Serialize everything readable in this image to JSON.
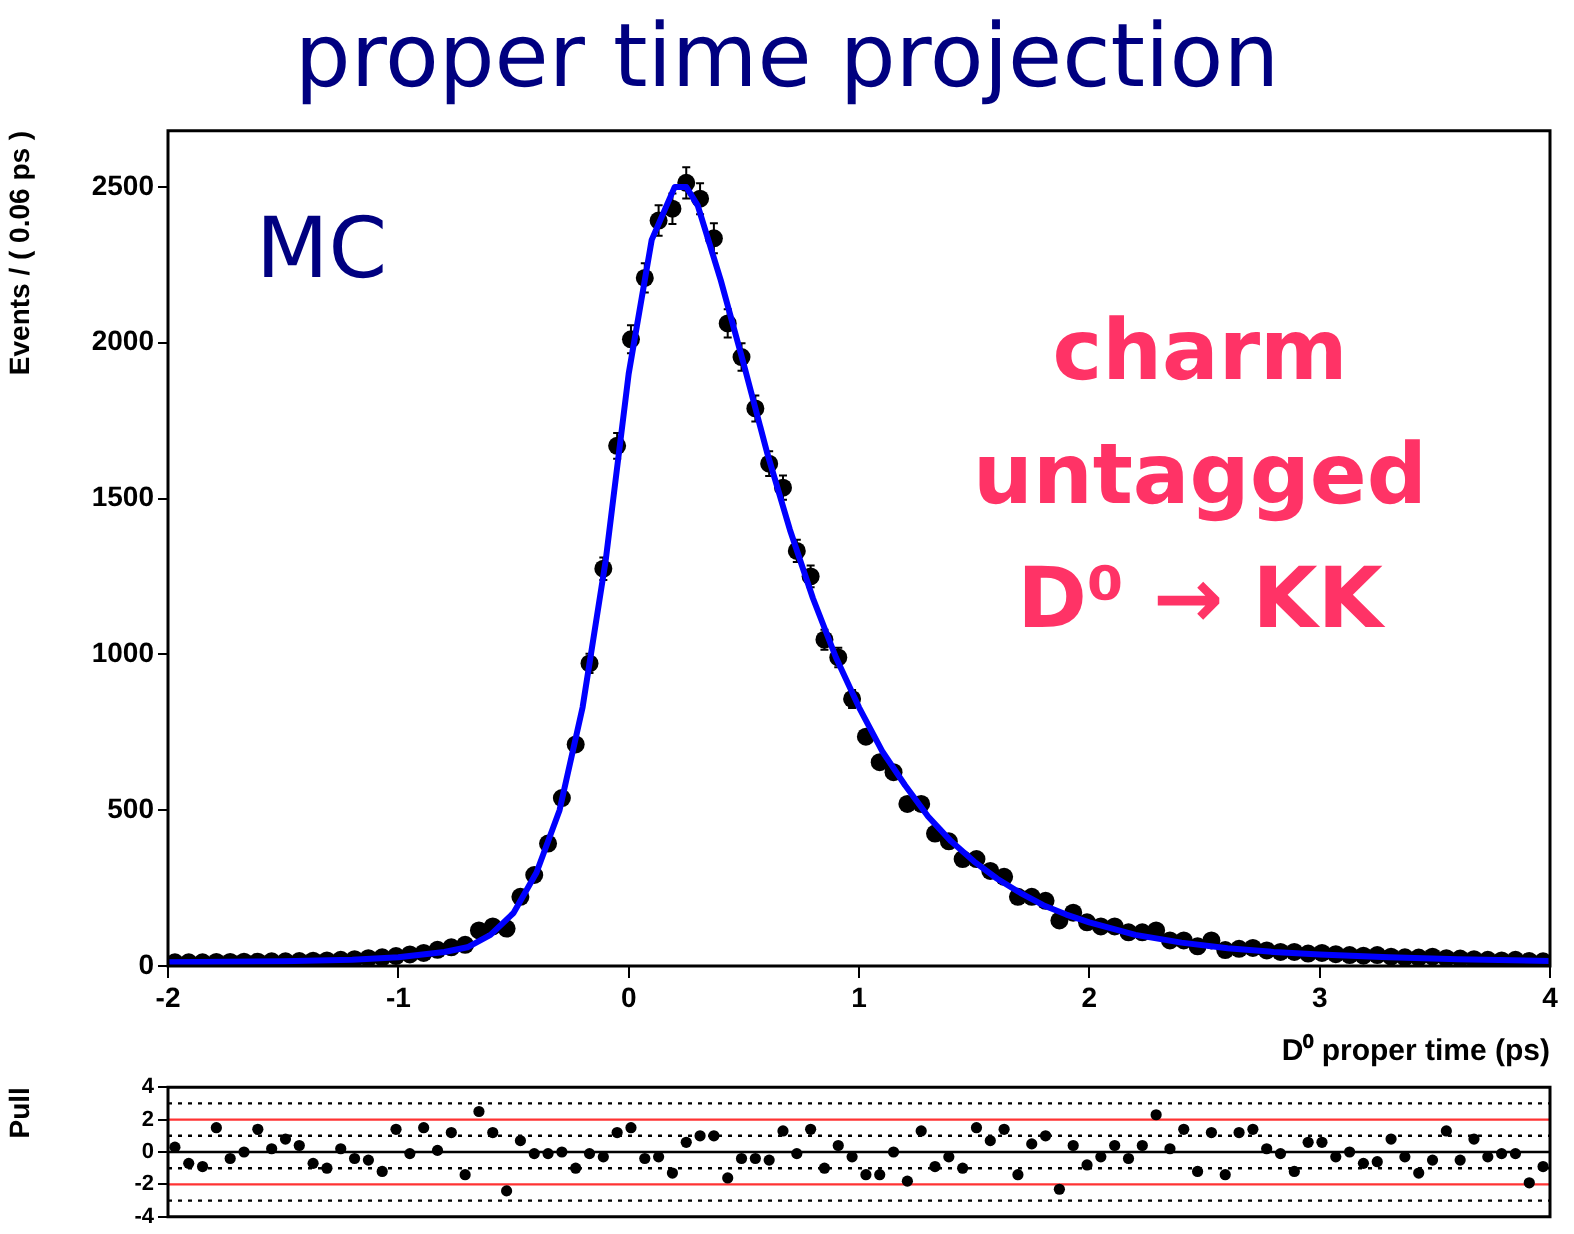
{
  "chart_data": [
    {
      "type": "scatter",
      "title": "proper time projection",
      "xlabel": "D⁰ proper time (ps)",
      "ylabel": "Events / ( 0.06 ps )",
      "annotations": [
        "MC",
        "charm",
        "untagged",
        "D⁰ → KK"
      ],
      "xlim": [
        -2,
        4
      ],
      "xticks": [
        -2,
        -1,
        0,
        1,
        2,
        3,
        4
      ],
      "ylim": [
        0,
        2680
      ],
      "yticks": [
        0,
        500,
        1000,
        1500,
        2000,
        2500
      ],
      "marker": "circle",
      "series": [
        {
          "type": "scatter",
          "color": "#000000",
          "x": [
            -1.97,
            -1.91,
            -1.85,
            -1.79,
            -1.73,
            -1.67,
            -1.61,
            -1.55,
            -1.49,
            -1.43,
            -1.37,
            -1.31,
            -1.25,
            -1.19,
            -1.13,
            -1.07,
            -1.01,
            -0.95,
            -0.89,
            -0.83,
            -0.77,
            -0.71,
            -0.65,
            -0.59,
            -0.53,
            -0.47,
            -0.41,
            -0.35,
            -0.29,
            -0.23,
            -0.17,
            -0.11,
            -0.05,
            0.01,
            0.07,
            0.13,
            0.19,
            0.25,
            0.31,
            0.37,
            0.43,
            0.49,
            0.55,
            0.61,
            0.67,
            0.73,
            0.79,
            0.85,
            0.91,
            0.97,
            1.03,
            1.09,
            1.15,
            1.21,
            1.27,
            1.33,
            1.39,
            1.45,
            1.51,
            1.57,
            1.63,
            1.69,
            1.75,
            1.81,
            1.87,
            1.93,
            1.99,
            2.05,
            2.11,
            2.17,
            2.23,
            2.29,
            2.35,
            2.41,
            2.47,
            2.53,
            2.59,
            2.65,
            2.71,
            2.77,
            2.83,
            2.89,
            2.95,
            3.01,
            3.07,
            3.13,
            3.19,
            3.25,
            3.31,
            3.37,
            3.43,
            3.49,
            3.55,
            3.61,
            3.67,
            3.73,
            3.79,
            3.85,
            3.91,
            3.97
          ],
          "values": [
            12,
            12,
            12,
            13,
            13,
            14,
            14,
            15,
            15,
            16,
            17,
            18,
            20,
            22,
            25,
            28,
            32,
            37,
            42,
            52,
            60,
            68,
            114,
            127,
            120,
            222,
            292,
            393,
            539,
            711,
            971,
            1275,
            1669,
            2011,
            2208,
            2392,
            2430,
            2513,
            2462,
            2335,
            2062,
            1954,
            1789,
            1612,
            1535,
            1332,
            1250,
            1047,
            990,
            857,
            736,
            654,
            622,
            520,
            520,
            425,
            400,
            343,
            343,
            305,
            286,
            222,
            222,
            209,
            146,
            171,
            140,
            127,
            127,
            108,
            108,
            114,
            82,
            82,
            63,
            82,
            51,
            55,
            58,
            50,
            45,
            45,
            40,
            42,
            38,
            35,
            33,
            35,
            30,
            28,
            27,
            30,
            25,
            24,
            22,
            20,
            18,
            20,
            16,
            15
          ],
          "errors": [
            null,
            null,
            null,
            null,
            null,
            null,
            null,
            null,
            null,
            null,
            null,
            null,
            null,
            null,
            null,
            null,
            null,
            null,
            null,
            null,
            null,
            null,
            null,
            null,
            null,
            null,
            null,
            null,
            null,
            null,
            31,
            36,
            41,
            45,
            47,
            49,
            49,
            50,
            50,
            48,
            45,
            44,
            42,
            40,
            39,
            36,
            35,
            32,
            31,
            29,
            null,
            null,
            null,
            null,
            null,
            null,
            null,
            null,
            null,
            null,
            null,
            null,
            null,
            null,
            null,
            null,
            null,
            null,
            null,
            null,
            null,
            null,
            null,
            null,
            null,
            null,
            null,
            null,
            null,
            null,
            null,
            null,
            null,
            null,
            null,
            null,
            null,
            null,
            null,
            null,
            null,
            null,
            null,
            null,
            null,
            null,
            null,
            null,
            null,
            null
          ]
        },
        {
          "type": "line",
          "color": "#0000ff",
          "marker": "none",
          "x": [
            -2,
            -1.5,
            -1.2,
            -1,
            -0.8,
            -0.7,
            -0.6,
            -0.5,
            -0.4,
            -0.3,
            -0.2,
            -0.1,
            0,
            0.1,
            0.2,
            0.25,
            0.3,
            0.4,
            0.5,
            0.6,
            0.7,
            0.8,
            0.9,
            1,
            1.1,
            1.2,
            1.3,
            1.4,
            1.5,
            1.6,
            1.7,
            1.8,
            1.9,
            2,
            2.2,
            2.4,
            2.6,
            2.8,
            3,
            3.3,
            3.6,
            4
          ],
          "values": [
            12,
            15,
            20,
            28,
            45,
            60,
            100,
            170,
            300,
            500,
            830,
            1300,
            1900,
            2330,
            2500,
            2500,
            2440,
            2200,
            1930,
            1650,
            1400,
            1180,
            990,
            830,
            690,
            580,
            480,
            400,
            335,
            280,
            235,
            195,
            165,
            140,
            100,
            75,
            57,
            45,
            37,
            28,
            22,
            16
          ]
        }
      ]
    },
    {
      "type": "scatter",
      "ylabel": "Pull",
      "xlim": [
        -2,
        4
      ],
      "ylim": [
        -4,
        4
      ],
      "yticks": [
        -4,
        -2,
        0,
        2,
        4
      ],
      "tick_labels": "y",
      "marker": "circle",
      "ref_lines": [
        {
          "axis": "y",
          "value": 2,
          "color": "#ff3333",
          "line_style": "solid"
        },
        {
          "axis": "y",
          "value": -2,
          "color": "#ff3333",
          "line_style": "solid"
        },
        {
          "axis": "y",
          "value": 0,
          "color": "#000000",
          "line_style": "solid"
        },
        {
          "axis": "y",
          "value": 1,
          "color": "#000000",
          "line_style": "dotted"
        },
        {
          "axis": "y",
          "value": -1,
          "color": "#000000",
          "line_style": "dotted"
        },
        {
          "axis": "y",
          "value": 3,
          "color": "#000000",
          "line_style": "dotted"
        },
        {
          "axis": "y",
          "value": -3,
          "color": "#000000",
          "line_style": "dotted"
        }
      ],
      "series": [
        {
          "color": "#000000",
          "x": [
            -1.97,
            -1.91,
            -1.85,
            -1.79,
            -1.73,
            -1.67,
            -1.61,
            -1.55,
            -1.49,
            -1.43,
            -1.37,
            -1.31,
            -1.25,
            -1.19,
            -1.13,
            -1.07,
            -1.01,
            -0.95,
            -0.89,
            -0.83,
            -0.77,
            -0.71,
            -0.65,
            -0.59,
            -0.53,
            -0.47,
            -0.41,
            -0.35,
            -0.29,
            -0.23,
            -0.17,
            -0.11,
            -0.05,
            0.01,
            0.07,
            0.13,
            0.19,
            0.25,
            0.31,
            0.37,
            0.43,
            0.49,
            0.55,
            0.61,
            0.67,
            0.73,
            0.79,
            0.85,
            0.91,
            0.97,
            1.03,
            1.09,
            1.15,
            1.21,
            1.27,
            1.33,
            1.39,
            1.45,
            1.51,
            1.57,
            1.63,
            1.69,
            1.75,
            1.81,
            1.87,
            1.93,
            1.99,
            2.05,
            2.11,
            2.17,
            2.23,
            2.29,
            2.35,
            2.41,
            2.47,
            2.53,
            2.59,
            2.65,
            2.71,
            2.77,
            2.83,
            2.89,
            2.95,
            3.01,
            3.07,
            3.13,
            3.19,
            3.25,
            3.31,
            3.37,
            3.43,
            3.49,
            3.55,
            3.61,
            3.67,
            3.73,
            3.79,
            3.85,
            3.91,
            3.97
          ],
          "values": [
            0.3,
            -0.7,
            -0.9,
            1.5,
            -0.4,
            0.0,
            1.4,
            0.2,
            0.8,
            0.4,
            -0.7,
            -1.0,
            0.2,
            -0.4,
            -0.5,
            -1.2,
            1.4,
            -0.1,
            1.5,
            0.1,
            1.2,
            -1.4,
            2.5,
            1.2,
            -2.4,
            0.7,
            -0.1,
            -0.1,
            0.0,
            -1.0,
            -0.1,
            -0.3,
            1.2,
            1.5,
            -0.4,
            -0.3,
            -1.3,
            0.6,
            1.0,
            1.0,
            -1.6,
            -0.4,
            -0.4,
            -0.5,
            1.3,
            -0.1,
            1.4,
            -1.0,
            0.4,
            -0.3,
            -1.4,
            -1.4,
            0.0,
            -1.8,
            1.3,
            -0.9,
            -0.3,
            -1.0,
            1.5,
            0.7,
            1.4,
            -1.4,
            0.5,
            1.0,
            -2.3,
            0.4,
            -0.8,
            -0.3,
            0.4,
            -0.4,
            0.4,
            2.3,
            0.2,
            1.4,
            -1.2,
            1.2,
            -1.4,
            1.2,
            1.4,
            0.2,
            -0.1,
            -1.2,
            0.6,
            0.6,
            -0.3,
            0.0,
            -0.7,
            -0.6,
            0.8,
            -0.3,
            -1.3,
            -0.5,
            1.3,
            -0.5,
            0.8,
            -0.3,
            -0.1,
            -0.1,
            -1.9,
            -0.9
          ]
        }
      ]
    }
  ]
}
